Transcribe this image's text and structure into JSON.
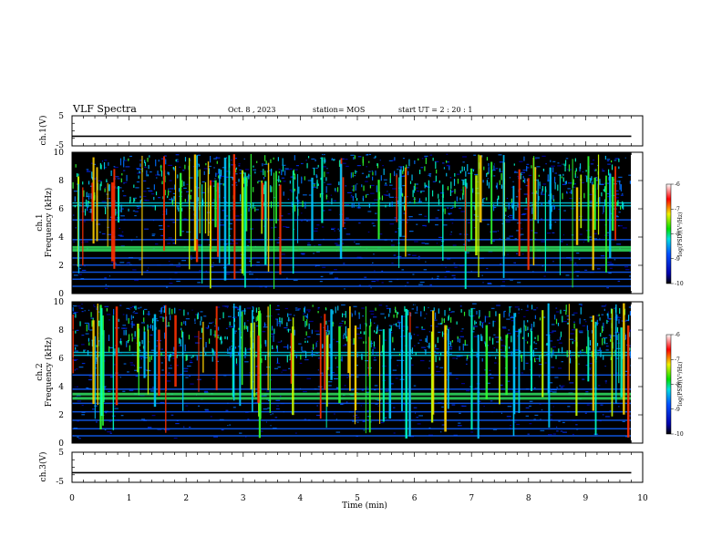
{
  "header": {
    "title": "VLF Spectra",
    "date": "Oct. 8 , 2023",
    "station": "station= MOS",
    "start_ut": "start UT =  2 : 20 : 1"
  },
  "chart_data": [
    {
      "type": "line",
      "panel": "ch1-voltage",
      "ylabel": "ch.1(V)",
      "ylim": [
        -5,
        5
      ],
      "yticks": [
        "5",
        "-5"
      ],
      "x": [
        0,
        9.8
      ],
      "y": [
        -1.8,
        -1.8
      ]
    },
    {
      "type": "heatmap",
      "panel": "ch1-spectrogram",
      "ylabel": "ch.1\nFrequency (kHz)",
      "ylim": [
        0,
        10
      ],
      "yticks": [
        "0",
        "2",
        "4",
        "6",
        "8",
        "10"
      ],
      "bands_khz": [
        0.5,
        1.0,
        1.5,
        2.0,
        2.5,
        3.1,
        3.3,
        3.8,
        5.2,
        6.2,
        6.4
      ],
      "colorbar": {
        "label": "log(PSD)(V²/Hz)",
        "range": [
          -10,
          -6
        ],
        "ticks": [
          "-6",
          "-7",
          "-8",
          "-9",
          "-10"
        ]
      }
    },
    {
      "type": "heatmap",
      "panel": "ch2-spectrogram",
      "ylabel": "ch.2\nFrequency (kHz)",
      "ylim": [
        0,
        10
      ],
      "yticks": [
        "0",
        "2",
        "4",
        "6",
        "8",
        "10"
      ],
      "bands_khz": [
        0.5,
        1.0,
        1.6,
        2.2,
        2.8,
        3.2,
        3.5,
        3.8,
        4.8,
        6.2,
        6.4
      ],
      "colorbar": {
        "label": "log(PSD)(V²/Hz)",
        "range": [
          -10,
          -6
        ],
        "ticks": [
          "-6",
          "-7",
          "-8",
          "-9",
          "-10"
        ]
      }
    },
    {
      "type": "line",
      "panel": "ch3-voltage",
      "ylabel": "ch.3(V)",
      "ylim": [
        -5,
        5
      ],
      "yticks": [
        "5",
        "-5"
      ],
      "x": [
        0,
        9.8
      ],
      "y": [
        -1.8,
        -1.8
      ]
    }
  ],
  "xaxis": {
    "label": "Time (min)",
    "range": [
      0,
      10
    ],
    "ticks": [
      "0",
      "1",
      "2",
      "3",
      "4",
      "5",
      "6",
      "7",
      "8",
      "9",
      "10"
    ]
  }
}
